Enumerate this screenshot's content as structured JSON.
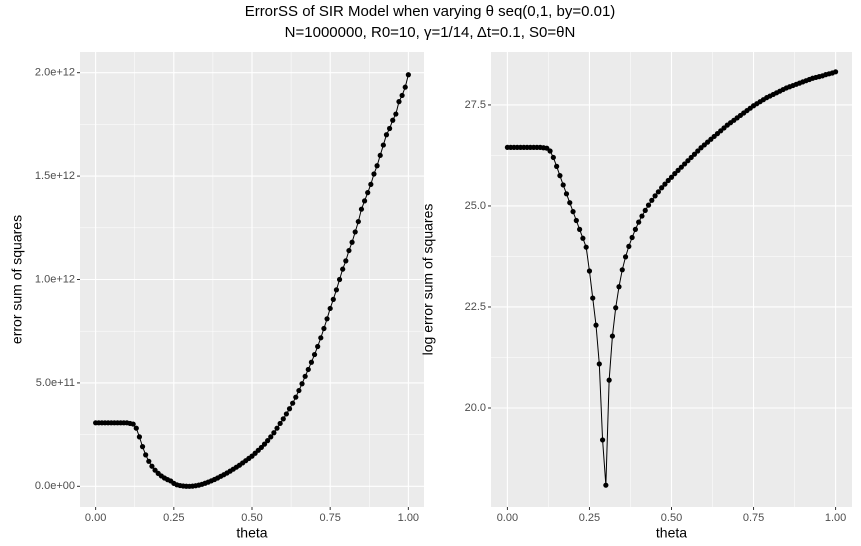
{
  "title": "ErrorSS of SIR Model when varying θ seq(0,1, by=0.01)",
  "subtitle": "N=1000000, R0=10, γ=1/14, Δt=0.1, S0=θN",
  "chart_data": [
    {
      "type": "line",
      "markers": true,
      "grid": true,
      "color": "#000000",
      "xlabel": "theta",
      "ylabel": "error sum of squares",
      "xlim": [
        -0.05,
        1.05
      ],
      "ylim": [
        -100000000000.0,
        2100000000000.0
      ],
      "xticks": [
        {
          "value": 0,
          "label": "0.00"
        },
        {
          "value": 0.25,
          "label": "0.25"
        },
        {
          "value": 0.5,
          "label": "0.50"
        },
        {
          "value": 0.75,
          "label": "0.75"
        },
        {
          "value": 1,
          "label": "1.00"
        }
      ],
      "yticks": [
        {
          "value": 0,
          "label": "0.0e+00"
        },
        {
          "value": 500000000000.0,
          "label": "5.0e+11"
        },
        {
          "value": 1000000000000.0,
          "label": "1.0e+12"
        },
        {
          "value": 1500000000000.0,
          "label": "1.5e+12"
        },
        {
          "value": 2000000000000.0,
          "label": "2.0e+12"
        }
      ],
      "x": [
        0,
        0.01,
        0.02,
        0.03,
        0.04,
        0.05,
        0.06,
        0.07,
        0.08,
        0.09,
        0.1,
        0.11,
        0.12,
        0.13,
        0.14,
        0.15,
        0.16,
        0.17,
        0.18,
        0.19,
        0.2,
        0.21,
        0.22,
        0.23,
        0.24,
        0.25,
        0.26,
        0.27,
        0.28,
        0.29,
        0.3,
        0.31,
        0.32,
        0.33,
        0.34,
        0.35,
        0.36,
        0.37,
        0.38,
        0.39,
        0.4,
        0.41,
        0.42,
        0.43,
        0.44,
        0.45,
        0.46,
        0.47,
        0.48,
        0.49,
        0.5,
        0.51,
        0.52,
        0.53,
        0.54,
        0.55,
        0.56,
        0.57,
        0.58,
        0.59,
        0.6,
        0.61,
        0.62,
        0.63,
        0.64,
        0.65,
        0.66,
        0.67,
        0.68,
        0.69,
        0.7,
        0.71,
        0.72,
        0.73,
        0.74,
        0.75,
        0.76,
        0.77,
        0.78,
        0.79,
        0.8,
        0.81,
        0.82,
        0.83,
        0.84,
        0.85,
        0.86,
        0.87,
        0.88,
        0.89,
        0.9,
        0.91,
        0.92,
        0.93,
        0.94,
        0.95,
        0.96,
        0.97,
        0.98,
        0.99,
        1
      ],
      "values": [
        307000000000.0,
        307000000000.0,
        307000000000.0,
        307000000000.0,
        307000000000.0,
        307000000000.0,
        307000000000.0,
        307000000000.0,
        307000000000.0,
        307000000000.0,
        307000000000.0,
        304000000000.0,
        301000000000.0,
        281000000000.0,
        239000000000.0,
        192000000000.0,
        152000000000.0,
        121000000000.0,
        97200000000.0,
        78000000000.0,
        62600000000.0,
        50200000000.0,
        40300000000.0,
        32400000000.0,
        26000000000.0,
        14400000000.0,
        7360000000.0,
        3770000000.0,
        1440000000.0,
        220000000.0,
        71800000.0,
        967000000.0,
        2880000000.0,
        5790000000.0,
        9740000000.0,
        14800000000.0,
        20400000000.0,
        26500000000.0,
        33000000000.0,
        40300000000.0,
        48300000000.0,
        56100000000.0,
        64500000000.0,
        73500000000.0,
        82800000000.0,
        92500000000.0,
        102000000000.0,
        113000000000.0,
        124000000000.0,
        135000000000.0,
        146000000000.0,
        160000000000.0,
        174000000000.0,
        188000000000.0,
        204000000000.0,
        221000000000.0,
        239000000000.0,
        259000000000.0,
        281000000000.0,
        304000000000.0,
        326000000000.0,
        350000000000.0,
        375000000000.0,
        402000000000.0,
        431000000000.0,
        463000000000.0,
        496000000000.0,
        532000000000.0,
        565000000000.0,
        600000000000.0,
        637000000000.0,
        676000000000.0,
        718000000000.0,
        763000000000.0,
        810000000000.0,
        860000000000.0,
        904000000000.0,
        950000000000.0,
        1000000000000.0,
        1050000000000.0,
        1090000000000.0,
        1140000000000.0,
        1180000000000.0,
        1230000000000.0,
        1280000000000.0,
        1340000000000.0,
        1380000000000.0,
        1420000000000.0,
        1460000000000.0,
        1510000000000.0,
        1550000000000.0,
        1600000000000.0,
        1650000000000.0,
        1700000000000.0,
        1730000000000.0,
        1770000000000.0,
        1800000000000.0,
        1860000000000.0,
        1890000000000.0,
        1930000000000.0,
        1990000000000.0
      ]
    },
    {
      "type": "line",
      "markers": true,
      "grid": true,
      "color": "#000000",
      "xlabel": "theta",
      "ylabel": "log error sum of squares",
      "xlim": [
        -0.05,
        1.05
      ],
      "ylim": [
        17.55,
        28.81
      ],
      "xticks": [
        {
          "value": 0,
          "label": "0.00"
        },
        {
          "value": 0.25,
          "label": "0.25"
        },
        {
          "value": 0.5,
          "label": "0.50"
        },
        {
          "value": 0.75,
          "label": "0.75"
        },
        {
          "value": 1,
          "label": "1.00"
        }
      ],
      "yticks": [
        {
          "value": 20,
          "label": "20.0"
        },
        22.5,
        {
          "value": 25,
          "label": "25.0"
        },
        27.5
      ],
      "x": [
        0,
        0.01,
        0.02,
        0.03,
        0.04,
        0.05,
        0.06,
        0.07,
        0.08,
        0.09,
        0.1,
        0.11,
        0.12,
        0.13,
        0.14,
        0.15,
        0.16,
        0.17,
        0.18,
        0.19,
        0.2,
        0.21,
        0.22,
        0.23,
        0.24,
        0.25,
        0.26,
        0.27,
        0.28,
        0.29,
        0.3,
        0.31,
        0.32,
        0.33,
        0.34,
        0.35,
        0.36,
        0.37,
        0.38,
        0.39,
        0.4,
        0.41,
        0.42,
        0.43,
        0.44,
        0.45,
        0.46,
        0.47,
        0.48,
        0.49,
        0.5,
        0.51,
        0.52,
        0.53,
        0.54,
        0.55,
        0.56,
        0.57,
        0.58,
        0.59,
        0.6,
        0.61,
        0.62,
        0.63,
        0.64,
        0.65,
        0.66,
        0.67,
        0.68,
        0.69,
        0.7,
        0.71,
        0.72,
        0.73,
        0.74,
        0.75,
        0.76,
        0.77,
        0.78,
        0.79,
        0.8,
        0.81,
        0.82,
        0.83,
        0.84,
        0.85,
        0.86,
        0.87,
        0.88,
        0.89,
        0.9,
        0.91,
        0.92,
        0.93,
        0.94,
        0.95,
        0.96,
        0.97,
        0.98,
        0.99,
        1
      ],
      "values": [
        26.45,
        26.45,
        26.45,
        26.45,
        26.45,
        26.45,
        26.45,
        26.45,
        26.45,
        26.45,
        26.45,
        26.44,
        26.43,
        26.36,
        26.2,
        25.98,
        25.75,
        25.52,
        25.3,
        25.08,
        24.86,
        24.64,
        24.42,
        24.2,
        23.98,
        23.39,
        22.72,
        22.05,
        21.09,
        19.21,
        18.09,
        20.69,
        21.78,
        22.48,
        23.0,
        23.42,
        23.74,
        24.0,
        24.22,
        24.42,
        24.6,
        24.75,
        24.89,
        25.02,
        25.14,
        25.25,
        25.35,
        25.45,
        25.54,
        25.63,
        25.71,
        25.8,
        25.88,
        25.96,
        26.04,
        26.12,
        26.2,
        26.28,
        26.36,
        26.44,
        26.51,
        26.58,
        26.65,
        26.72,
        26.79,
        26.86,
        26.93,
        27.0,
        27.06,
        27.12,
        27.18,
        27.24,
        27.3,
        27.36,
        27.42,
        27.48,
        27.53,
        27.58,
        27.63,
        27.68,
        27.72,
        27.76,
        27.8,
        27.84,
        27.88,
        27.92,
        27.95,
        27.98,
        28.01,
        28.04,
        28.07,
        28.1,
        28.13,
        28.16,
        28.18,
        28.2,
        28.22,
        28.25,
        28.27,
        28.29,
        28.32
      ]
    }
  ]
}
